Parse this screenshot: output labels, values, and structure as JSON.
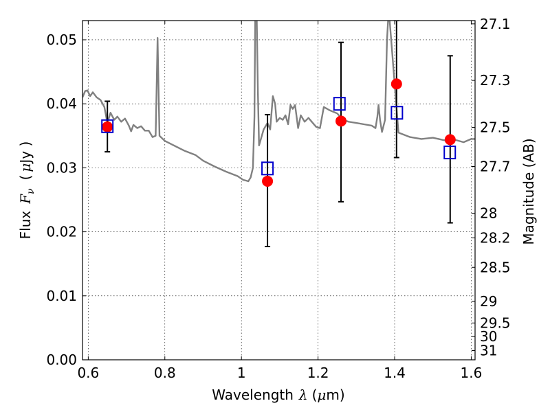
{
  "chart_data": {
    "type": "scatter",
    "xlabel": "Wavelength",
    "xlabel_symbol": "λ",
    "xlabel_unit_pre": "(",
    "xlabel_unit_mu": "μ",
    "xlabel_unit_post": "m)",
    "ylabel": "Flux",
    "ylabel_symbol": "F",
    "ylabel_subscript": "ν",
    "ylabel_unit_pre": "(",
    "ylabel_unit_mu": "μ",
    "ylabel_unit_post": "Jy )",
    "y2label": "Magnitude (AB)",
    "xlim": [
      0.585,
      1.61
    ],
    "ylim": [
      0.0,
      0.053
    ],
    "grid": true,
    "xticks": [
      0.6,
      0.8,
      1.0,
      1.2,
      1.4,
      1.6
    ],
    "xtick_labels": [
      "0.6",
      "0.8",
      "1",
      "1.2",
      "1.4",
      "1.6"
    ],
    "yticks": [
      0.0,
      0.01,
      0.02,
      0.03,
      0.04,
      0.05
    ],
    "ytick_labels": [
      "0.00",
      "0.01",
      "0.02",
      "0.03",
      "0.04",
      "0.05"
    ],
    "mag_ticks": [
      27.1,
      27.3,
      27.5,
      27.7,
      28,
      28.2,
      28.5,
      29,
      29.5,
      30,
      31
    ],
    "mag_tick_labels": [
      "27.1",
      "27.3",
      "27.5",
      "27.7",
      "28",
      "28.2",
      "28.5",
      "29",
      "29.5",
      "30",
      "31"
    ],
    "series": [
      {
        "kind": "line",
        "color": "#808080",
        "points": [
          [
            0.585,
            0.041
          ],
          [
            0.592,
            0.042
          ],
          [
            0.598,
            0.0421
          ],
          [
            0.605,
            0.0412
          ],
          [
            0.612,
            0.0418
          ],
          [
            0.622,
            0.041
          ],
          [
            0.632,
            0.0406
          ],
          [
            0.642,
            0.0395
          ],
          [
            0.65,
            0.037
          ],
          [
            0.658,
            0.0386
          ],
          [
            0.668,
            0.0375
          ],
          [
            0.676,
            0.038
          ],
          [
            0.686,
            0.0372
          ],
          [
            0.696,
            0.0377
          ],
          [
            0.706,
            0.0366
          ],
          [
            0.712,
            0.0357
          ],
          [
            0.718,
            0.0367
          ],
          [
            0.728,
            0.0362
          ],
          [
            0.738,
            0.0365
          ],
          [
            0.748,
            0.0358
          ],
          [
            0.758,
            0.0358
          ],
          [
            0.768,
            0.0348
          ],
          [
            0.776,
            0.035
          ],
          [
            0.779,
            0.044
          ],
          [
            0.781,
            0.0503
          ],
          [
            0.783,
            0.044
          ],
          [
            0.786,
            0.035
          ],
          [
            0.8,
            0.0342
          ],
          [
            0.82,
            0.0336
          ],
          [
            0.85,
            0.0327
          ],
          [
            0.88,
            0.032
          ],
          [
            0.9,
            0.0311
          ],
          [
            0.93,
            0.0302
          ],
          [
            0.96,
            0.0294
          ],
          [
            0.99,
            0.0287
          ],
          [
            1.005,
            0.0281
          ],
          [
            1.012,
            0.028
          ],
          [
            1.018,
            0.0279
          ],
          [
            1.024,
            0.0285
          ],
          [
            1.03,
            0.03
          ],
          [
            1.034,
            0.038
          ],
          [
            1.036,
            0.053
          ],
          [
            1.04,
            0.053
          ],
          [
            1.043,
            0.042
          ],
          [
            1.046,
            0.0335
          ],
          [
            1.058,
            0.036
          ],
          [
            1.068,
            0.037
          ],
          [
            1.075,
            0.036
          ],
          [
            1.082,
            0.0412
          ],
          [
            1.088,
            0.04
          ],
          [
            1.092,
            0.0372
          ],
          [
            1.1,
            0.0378
          ],
          [
            1.108,
            0.0375
          ],
          [
            1.115,
            0.0382
          ],
          [
            1.122,
            0.0368
          ],
          [
            1.128,
            0.0398
          ],
          [
            1.134,
            0.0392
          ],
          [
            1.14,
            0.0398
          ],
          [
            1.148,
            0.0362
          ],
          [
            1.155,
            0.0382
          ],
          [
            1.165,
            0.0372
          ],
          [
            1.175,
            0.0378
          ],
          [
            1.185,
            0.0371
          ],
          [
            1.195,
            0.0364
          ],
          [
            1.205,
            0.0362
          ],
          [
            1.215,
            0.0395
          ],
          [
            1.23,
            0.039
          ],
          [
            1.25,
            0.0385
          ],
          [
            1.265,
            0.0375
          ],
          [
            1.28,
            0.0372
          ],
          [
            1.3,
            0.037
          ],
          [
            1.32,
            0.0368
          ],
          [
            1.34,
            0.0366
          ],
          [
            1.35,
            0.0362
          ],
          [
            1.355,
            0.038
          ],
          [
            1.358,
            0.0398
          ],
          [
            1.362,
            0.0375
          ],
          [
            1.367,
            0.0356
          ],
          [
            1.375,
            0.0375
          ],
          [
            1.38,
            0.05
          ],
          [
            1.383,
            0.053
          ],
          [
            1.387,
            0.053
          ],
          [
            1.41,
            0.0355
          ],
          [
            1.44,
            0.0348
          ],
          [
            1.47,
            0.0345
          ],
          [
            1.5,
            0.0347
          ],
          [
            1.53,
            0.0343
          ],
          [
            1.55,
            0.0345
          ],
          [
            1.58,
            0.034
          ],
          [
            1.6,
            0.0345
          ],
          [
            1.61,
            0.0345
          ]
        ]
      },
      {
        "kind": "errorbar",
        "color": "#000000",
        "points": [
          {
            "x": 0.65,
            "lo": 0.0325,
            "hi": 0.0404
          },
          {
            "x": 1.068,
            "lo": 0.0177,
            "hi": 0.0383
          },
          {
            "x": 1.26,
            "lo": 0.0247,
            "hi": 0.0496
          },
          {
            "x": 1.405,
            "lo": 0.0316,
            "hi": 0.053
          },
          {
            "x": 1.545,
            "lo": 0.0214,
            "hi": 0.0475
          }
        ]
      },
      {
        "kind": "circle",
        "color": "#ff0000",
        "points": [
          [
            0.65,
            0.0364
          ],
          [
            1.068,
            0.0279
          ],
          [
            1.26,
            0.0373
          ],
          [
            1.405,
            0.0431
          ],
          [
            1.545,
            0.0344
          ]
        ]
      },
      {
        "kind": "square",
        "color": "#0000cc",
        "points": [
          [
            0.65,
            0.0365
          ],
          [
            1.068,
            0.0299
          ],
          [
            1.256,
            0.04
          ],
          [
            1.406,
            0.0386
          ],
          [
            1.544,
            0.0324
          ]
        ]
      }
    ]
  }
}
